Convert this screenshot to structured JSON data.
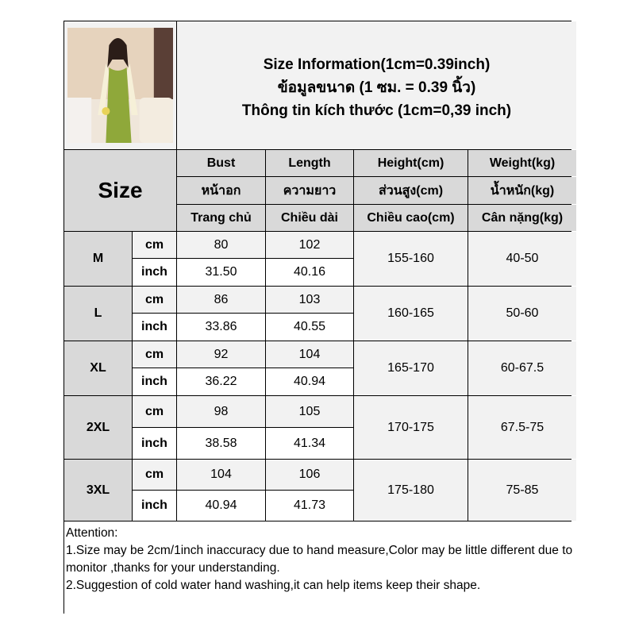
{
  "title": {
    "lines": [
      "Size Information(1cm=0.39inch)",
      "ข้อมูลขนาด (1 ซม. = 0.39 นิ้ว)",
      "Thông tin kích thước (1cm=0,39 inch)"
    ]
  },
  "photo": {
    "alt": "model wearing green slip dress with cream cardigan"
  },
  "header": {
    "size_label": "Size",
    "columns": [
      [
        "Bust",
        "หน้าอก",
        "Trang chủ"
      ],
      [
        "Length",
        "ความยาว",
        "Chiều dài"
      ],
      [
        "Height(cm)",
        "ส่วนสูง(cm)",
        "Chiều cao(cm)"
      ],
      [
        "Weight(kg)",
        "น้ำหนัก(kg)",
        "Cân nặng(kg)"
      ]
    ]
  },
  "units": {
    "cm": "cm",
    "inch": "inch"
  },
  "rows": [
    {
      "size": "M",
      "bust_cm": "80",
      "length_cm": "102",
      "bust_inch": "31.50",
      "length_inch": "40.16",
      "height": "155-160",
      "weight": "40-50"
    },
    {
      "size": "L",
      "bust_cm": "86",
      "length_cm": "103",
      "bust_inch": "33.86",
      "length_inch": "40.55",
      "height": "160-165",
      "weight": "50-60"
    },
    {
      "size": "XL",
      "bust_cm": "92",
      "length_cm": "104",
      "bust_inch": "36.22",
      "length_inch": "40.94",
      "height": "165-170",
      "weight": "60-67.5"
    },
    {
      "size": "2XL",
      "bust_cm": "98",
      "length_cm": "105",
      "bust_inch": "38.58",
      "length_inch": "41.34",
      "height": "170-175",
      "weight": "67.5-75"
    },
    {
      "size": "3XL",
      "bust_cm": "104",
      "length_cm": "106",
      "bust_inch": "40.94",
      "length_inch": "41.73",
      "height": "175-180",
      "weight": "75-85"
    }
  ],
  "notes": {
    "heading": "Attention:",
    "lines": [
      "1.Size may be 2cm/1inch inaccuracy due to hand measure,Color may be little different due to monitor ,thanks for your understanding.",
      "2.Suggestion of cold water hand washing,it can help items keep their shape."
    ]
  },
  "colors": {
    "header_gray": "#d9d9d9",
    "light_gray": "#f2f2f2",
    "border": "#000000"
  }
}
